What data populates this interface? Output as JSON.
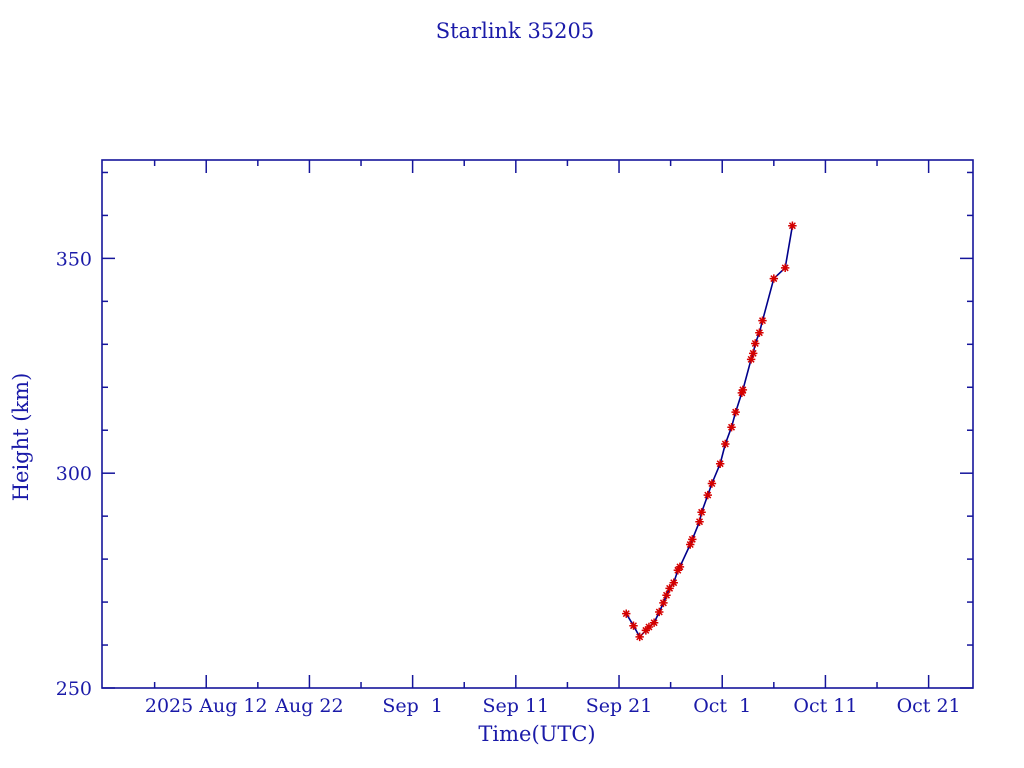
{
  "title": "Starlink 35205",
  "colors": {
    "text": "#1a1aa8",
    "axis": "#15159b",
    "line": "#00008b",
    "marker": "#d40000",
    "background": "#ffffff"
  },
  "chart_data": {
    "type": "line",
    "title": "Starlink 35205",
    "xlabel": "Time(UTC)",
    "ylabel": "Height (km)",
    "x_unit": "days since 2025 Aug 12 (UTC)",
    "xlim": [
      -10.1,
      74.3
    ],
    "ylim": [
      250,
      372.9
    ],
    "grid": false,
    "legend": "none",
    "x_major_ticks": [
      {
        "d": 0,
        "label": "2025 Aug 12"
      },
      {
        "d": 10,
        "label": "Aug 22"
      },
      {
        "d": 20,
        "label": "Sep  1"
      },
      {
        "d": 30,
        "label": "Sep 11"
      },
      {
        "d": 40,
        "label": "Sep 21"
      },
      {
        "d": 50,
        "label": "Oct  1"
      },
      {
        "d": 60,
        "label": "Oct 11"
      },
      {
        "d": 70,
        "label": "Oct 21"
      }
    ],
    "x_minor_ticks": [
      -5,
      5,
      15,
      25,
      35,
      45,
      55,
      65
    ],
    "y_major_ticks": [
      250,
      300,
      350
    ],
    "y_minor_ticks": [
      260,
      270,
      280,
      290,
      310,
      320,
      330,
      340,
      360,
      370
    ],
    "series": [
      {
        "name": "height",
        "marker": "asterisk",
        "points": [
          [
            40.7,
            267.3
          ],
          [
            41.4,
            264.5
          ],
          [
            42.0,
            261.9
          ],
          [
            42.6,
            263.4
          ],
          [
            42.9,
            264.2
          ],
          [
            43.4,
            265.2
          ],
          [
            43.9,
            267.7
          ],
          [
            44.3,
            269.8
          ],
          [
            44.6,
            271.6
          ],
          [
            44.9,
            273.2
          ],
          [
            45.3,
            274.5
          ],
          [
            45.7,
            277.4
          ],
          [
            45.9,
            278.2
          ],
          [
            46.9,
            283.4
          ],
          [
            47.1,
            284.6
          ],
          [
            47.8,
            288.7
          ],
          [
            48.0,
            290.9
          ],
          [
            48.6,
            294.9
          ],
          [
            49.0,
            297.6
          ],
          [
            49.8,
            302.2
          ],
          [
            50.3,
            306.8
          ],
          [
            50.9,
            310.7
          ],
          [
            51.3,
            314.2
          ],
          [
            51.9,
            318.7
          ],
          [
            52.0,
            319.4
          ],
          [
            52.8,
            326.5
          ],
          [
            53.0,
            327.9
          ],
          [
            53.2,
            330.2
          ],
          [
            53.6,
            332.7
          ],
          [
            53.9,
            335.5
          ],
          [
            55.0,
            345.3
          ],
          [
            56.1,
            347.8
          ],
          [
            56.8,
            357.6
          ]
        ]
      }
    ]
  }
}
